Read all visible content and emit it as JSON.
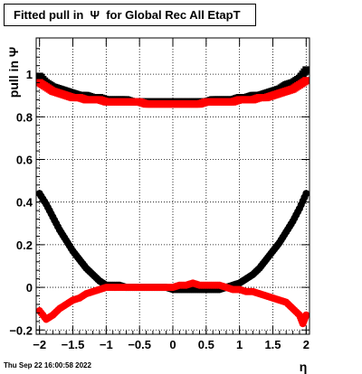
{
  "title": "Fitted pull in  Ψ  for Global Rec All EtapT",
  "footer": "Thu Sep 22 16:00:58 2022",
  "chart_data": {
    "type": "scatter",
    "title": "Fitted pull in  Ψ  for Global Rec All EtapT",
    "xlabel": "η",
    "ylabel": "pull in  Ψ",
    "xlim": [
      -2.05,
      2.05
    ],
    "ylim": [
      -0.22,
      1.17
    ],
    "xticks": [
      -2,
      -1.5,
      -1,
      -0.5,
      0,
      0.5,
      1,
      1.5,
      2
    ],
    "xtick_labels": [
      "−2",
      "−1.5",
      "−1",
      "−0.5",
      "0",
      "0.5",
      "1",
      "1.5",
      "2"
    ],
    "yticks": [
      -0.2,
      0,
      0.2,
      0.4,
      0.6,
      0.8,
      1
    ],
    "ytick_labels": [
      "−0.2",
      "0",
      "0.2",
      "0.4",
      "0.6",
      "0.8",
      "1"
    ],
    "grid": true,
    "series": [
      {
        "marker": "square",
        "color": "#000000",
        "x": [
          -2.0,
          -1.9,
          -1.8,
          -1.7,
          -1.6,
          -1.5,
          -1.4,
          -1.3,
          -1.2,
          -1.1,
          -1.0,
          -0.9,
          -0.8,
          -0.7,
          -0.6,
          -0.5,
          -0.4,
          -0.3,
          -0.2,
          -0.1,
          0.0,
          0.1,
          0.2,
          0.3,
          0.4,
          0.5,
          0.6,
          0.7,
          0.8,
          0.9,
          1.0,
          1.1,
          1.2,
          1.3,
          1.4,
          1.5,
          1.6,
          1.7,
          1.8,
          1.9,
          2.0
        ],
        "y": [
          0.99,
          0.96,
          0.94,
          0.93,
          0.92,
          0.91,
          0.9,
          0.9,
          0.89,
          0.89,
          0.88,
          0.88,
          0.88,
          0.88,
          0.87,
          0.87,
          0.87,
          0.87,
          0.87,
          0.87,
          0.87,
          0.87,
          0.87,
          0.87,
          0.87,
          0.87,
          0.88,
          0.88,
          0.88,
          0.88,
          0.89,
          0.89,
          0.9,
          0.9,
          0.91,
          0.92,
          0.93,
          0.95,
          0.96,
          0.98,
          1.02
        ]
      },
      {
        "marker": "circle",
        "color": "#000000",
        "x": [
          -2.0,
          -1.9,
          -1.8,
          -1.7,
          -1.6,
          -1.5,
          -1.4,
          -1.3,
          -1.2,
          -1.1,
          -1.0,
          -0.9,
          -0.8,
          -0.7,
          -0.6,
          -0.5,
          -0.4,
          -0.3,
          -0.2,
          -0.1,
          0.0,
          0.1,
          0.2,
          0.3,
          0.4,
          0.5,
          0.6,
          0.7,
          0.8,
          0.9,
          1.0,
          1.1,
          1.2,
          1.3,
          1.4,
          1.5,
          1.6,
          1.7,
          1.8,
          1.9,
          2.0
        ],
        "y": [
          0.44,
          0.39,
          0.33,
          0.27,
          0.22,
          0.17,
          0.13,
          0.09,
          0.06,
          0.03,
          0.01,
          0.01,
          0.01,
          0.0,
          0.0,
          0.0,
          0.0,
          0.0,
          0.0,
          0.0,
          -0.01,
          -0.01,
          -0.01,
          -0.01,
          -0.01,
          -0.01,
          -0.01,
          -0.01,
          0.0,
          0.01,
          0.02,
          0.04,
          0.06,
          0.09,
          0.13,
          0.17,
          0.21,
          0.26,
          0.31,
          0.37,
          0.44
        ]
      },
      {
        "marker": "square",
        "color": "#ff0000",
        "x": [
          -2.0,
          -1.9,
          -1.8,
          -1.7,
          -1.6,
          -1.5,
          -1.4,
          -1.3,
          -1.2,
          -1.1,
          -1.0,
          -0.9,
          -0.8,
          -0.7,
          -0.6,
          -0.5,
          -0.4,
          -0.3,
          -0.2,
          -0.1,
          0.0,
          0.1,
          0.2,
          0.3,
          0.4,
          0.5,
          0.6,
          0.7,
          0.8,
          0.9,
          1.0,
          1.1,
          1.2,
          1.3,
          1.4,
          1.5,
          1.6,
          1.7,
          1.8,
          1.9,
          2.0
        ],
        "y": [
          0.96,
          0.94,
          0.92,
          0.91,
          0.9,
          0.89,
          0.89,
          0.88,
          0.88,
          0.88,
          0.87,
          0.87,
          0.87,
          0.87,
          0.87,
          0.87,
          0.86,
          0.86,
          0.86,
          0.86,
          0.86,
          0.86,
          0.86,
          0.86,
          0.86,
          0.87,
          0.87,
          0.87,
          0.87,
          0.87,
          0.88,
          0.88,
          0.88,
          0.89,
          0.89,
          0.9,
          0.91,
          0.92,
          0.93,
          0.95,
          0.97
        ]
      },
      {
        "marker": "circle",
        "color": "#ff0000",
        "x": [
          -2.0,
          -1.9,
          -1.8,
          -1.7,
          -1.6,
          -1.5,
          -1.4,
          -1.3,
          -1.2,
          -1.1,
          -1.0,
          -0.9,
          -0.8,
          -0.7,
          -0.6,
          -0.5,
          -0.4,
          -0.3,
          -0.2,
          -0.1,
          0.0,
          0.1,
          0.2,
          0.3,
          0.4,
          0.5,
          0.6,
          0.7,
          0.8,
          0.9,
          1.0,
          1.1,
          1.2,
          1.3,
          1.4,
          1.5,
          1.6,
          1.7,
          1.8,
          1.9,
          1.95,
          2.0
        ],
        "y": [
          -0.11,
          -0.15,
          -0.13,
          -0.1,
          -0.08,
          -0.06,
          -0.05,
          -0.03,
          -0.02,
          -0.01,
          0.0,
          0.0,
          0.0,
          0.0,
          0.0,
          0.0,
          0.0,
          0.0,
          0.0,
          0.0,
          0.0,
          0.01,
          0.01,
          0.02,
          0.01,
          0.01,
          0.01,
          0.01,
          0.0,
          -0.01,
          -0.01,
          -0.02,
          -0.02,
          -0.03,
          -0.04,
          -0.05,
          -0.06,
          -0.07,
          -0.1,
          -0.13,
          -0.17,
          -0.13
        ]
      }
    ]
  }
}
